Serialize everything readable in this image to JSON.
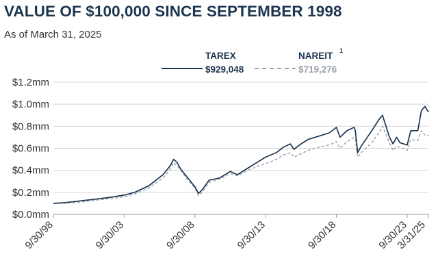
{
  "header": {
    "title": "VALUE OF $100,000 SINCE SEPTEMBER 1998",
    "subtitle": "As of March 31, 2025"
  },
  "colors": {
    "tarex": "#1d3550",
    "nareit": "#9aa0a6",
    "grid": "#d4d4d4",
    "axis": "#9a9a9a"
  },
  "chart_data": {
    "type": "line",
    "title": "VALUE OF $100,000 SINCE SEPTEMBER 1998",
    "subtitle": "As of March 31, 2025",
    "xlabel": "",
    "ylabel": "",
    "ylim": [
      0,
      1200000
    ],
    "yticks": [
      {
        "value": 0,
        "label": "$0.0mm"
      },
      {
        "value": 200000,
        "label": "$0.2mm"
      },
      {
        "value": 400000,
        "label": "$0.4mm"
      },
      {
        "value": 600000,
        "label": "$0.6mm"
      },
      {
        "value": 800000,
        "label": "$0.8mm"
      },
      {
        "value": 1000000,
        "label": "$1.0mm"
      },
      {
        "value": 1200000,
        "label": "$1.2mm"
      }
    ],
    "xlim": [
      "1998-09-30",
      "2025-03-31"
    ],
    "xticks": [
      {
        "value": "1998-09-30",
        "label": "9/30/98"
      },
      {
        "value": "2003-09-30",
        "label": "9/30/03"
      },
      {
        "value": "2008-09-30",
        "label": "9/30/08"
      },
      {
        "value": "2013-09-30",
        "label": "9/30/13"
      },
      {
        "value": "2018-09-30",
        "label": "9/30/18"
      },
      {
        "value": "2023-09-30",
        "label": "9/30/23"
      },
      {
        "value": "2025-03-31",
        "label": "3/31/25"
      }
    ],
    "grid": "horizontal",
    "legend": {
      "position": "top-center",
      "entries": [
        {
          "name": "TAREX",
          "value_label": "$929,048",
          "style": "solid"
        },
        {
          "name": "NAREIT",
          "superscript": "1",
          "value_label": "$719,276",
          "style": "dashed"
        }
      ]
    },
    "series": [
      {
        "name": "TAREX",
        "style": "solid",
        "x": [
          "1998-09-30",
          "1999-06-30",
          "2000-06-30",
          "2001-06-30",
          "2002-06-30",
          "2003-03-31",
          "2003-09-30",
          "2004-06-30",
          "2005-06-30",
          "2006-06-30",
          "2006-12-31",
          "2007-03-31",
          "2007-06-30",
          "2007-09-30",
          "2008-03-31",
          "2008-09-30",
          "2008-12-31",
          "2009-03-31",
          "2009-09-30",
          "2010-06-30",
          "2011-03-31",
          "2011-09-30",
          "2012-06-30",
          "2013-03-31",
          "2013-09-30",
          "2014-06-30",
          "2014-12-31",
          "2015-06-30",
          "2015-09-30",
          "2016-03-31",
          "2016-09-30",
          "2017-06-30",
          "2018-03-31",
          "2018-09-30",
          "2018-12-31",
          "2019-06-30",
          "2019-12-31",
          "2020-01-31",
          "2020-03-31",
          "2020-06-30",
          "2021-03-31",
          "2021-09-30",
          "2021-12-31",
          "2022-06-30",
          "2022-09-30",
          "2022-12-31",
          "2023-03-31",
          "2023-09-30",
          "2023-12-31",
          "2024-06-30",
          "2024-09-30",
          "2024-12-31",
          "2025-03-31"
        ],
        "values": [
          100000,
          105000,
          120000,
          135000,
          150000,
          165000,
          175000,
          200000,
          260000,
          360000,
          440000,
          500000,
          470000,
          410000,
          330000,
          250000,
          190000,
          220000,
          310000,
          330000,
          390000,
          360000,
          420000,
          480000,
          520000,
          560000,
          610000,
          640000,
          590000,
          640000,
          680000,
          710000,
          740000,
          790000,
          700000,
          760000,
          790000,
          760000,
          560000,
          620000,
          760000,
          860000,
          900000,
          700000,
          640000,
          700000,
          650000,
          630000,
          760000,
          760000,
          940000,
          980000,
          929048
        ]
      },
      {
        "name": "NAREIT",
        "style": "dashed",
        "x": [
          "1998-09-30",
          "1999-06-30",
          "2000-06-30",
          "2001-06-30",
          "2002-06-30",
          "2003-03-31",
          "2003-09-30",
          "2004-06-30",
          "2005-06-30",
          "2006-06-30",
          "2006-12-31",
          "2007-03-31",
          "2007-06-30",
          "2007-09-30",
          "2008-03-31",
          "2008-09-30",
          "2008-12-31",
          "2009-03-31",
          "2009-09-30",
          "2010-06-30",
          "2011-03-31",
          "2011-09-30",
          "2012-06-30",
          "2013-03-31",
          "2013-09-30",
          "2014-06-30",
          "2014-12-31",
          "2015-06-30",
          "2015-09-30",
          "2016-03-31",
          "2016-09-30",
          "2017-06-30",
          "2018-03-31",
          "2018-09-30",
          "2018-12-31",
          "2019-06-30",
          "2019-12-31",
          "2020-01-31",
          "2020-03-31",
          "2020-06-30",
          "2021-03-31",
          "2021-09-30",
          "2021-12-31",
          "2022-06-30",
          "2022-09-30",
          "2022-12-31",
          "2023-03-31",
          "2023-09-30",
          "2023-12-31",
          "2024-06-30",
          "2024-09-30",
          "2024-12-31",
          "2025-03-31"
        ],
        "values": [
          100000,
          102000,
          110000,
          125000,
          140000,
          150000,
          160000,
          185000,
          240000,
          330000,
          410000,
          470000,
          440000,
          400000,
          310000,
          240000,
          170000,
          200000,
          290000,
          320000,
          370000,
          350000,
          400000,
          440000,
          460000,
          500000,
          540000,
          560000,
          520000,
          550000,
          580000,
          610000,
          630000,
          660000,
          600000,
          660000,
          700000,
          680000,
          520000,
          560000,
          650000,
          740000,
          800000,
          650000,
          580000,
          620000,
          610000,
          580000,
          680000,
          670000,
          760000,
          720000,
          719276
        ]
      }
    ]
  }
}
